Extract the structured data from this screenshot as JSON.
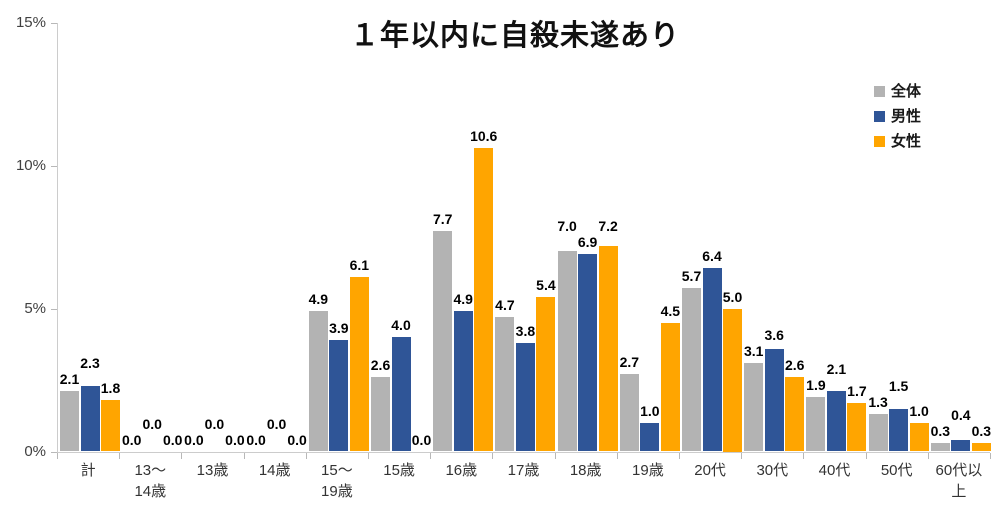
{
  "chart_data": {
    "type": "bar",
    "title": "１年以内に自殺未遂あり",
    "categories": [
      "計",
      "13〜\n14歳",
      "13歳",
      "14歳",
      "15〜\n19歳",
      "15歳",
      "16歳",
      "17歳",
      "18歳",
      "19歳",
      "20代",
      "30代",
      "40代",
      "50代",
      "60代以\n上"
    ],
    "series": [
      {
        "name": "全体",
        "color": "#B3B3B3",
        "values": [
          2.1,
          0.0,
          0.0,
          0.0,
          4.9,
          2.6,
          7.7,
          4.7,
          7.0,
          2.7,
          5.7,
          3.1,
          1.9,
          1.3,
          0.3
        ]
      },
      {
        "name": "男性",
        "color": "#2F5597",
        "values": [
          2.3,
          0.0,
          0.0,
          0.0,
          3.9,
          4.0,
          4.9,
          3.8,
          6.9,
          1.0,
          6.4,
          3.6,
          2.1,
          1.5,
          0.4
        ]
      },
      {
        "name": "女性",
        "color": "#FFA500",
        "values": [
          1.8,
          0.0,
          0.0,
          0.0,
          6.1,
          0.0,
          10.6,
          5.4,
          7.2,
          4.5,
          5.0,
          2.6,
          1.7,
          1.0,
          0.3
        ]
      }
    ],
    "y_ticks": [
      {
        "label": "0%",
        "value": 0
      },
      {
        "label": "5%",
        "value": 5
      },
      {
        "label": "10%",
        "value": 10
      },
      {
        "label": "15%",
        "value": 15
      }
    ],
    "ylim": [
      0,
      15
    ],
    "value_label_decimals": 1,
    "legend_position": "right",
    "grid": false,
    "background": "#FFFFFF"
  }
}
